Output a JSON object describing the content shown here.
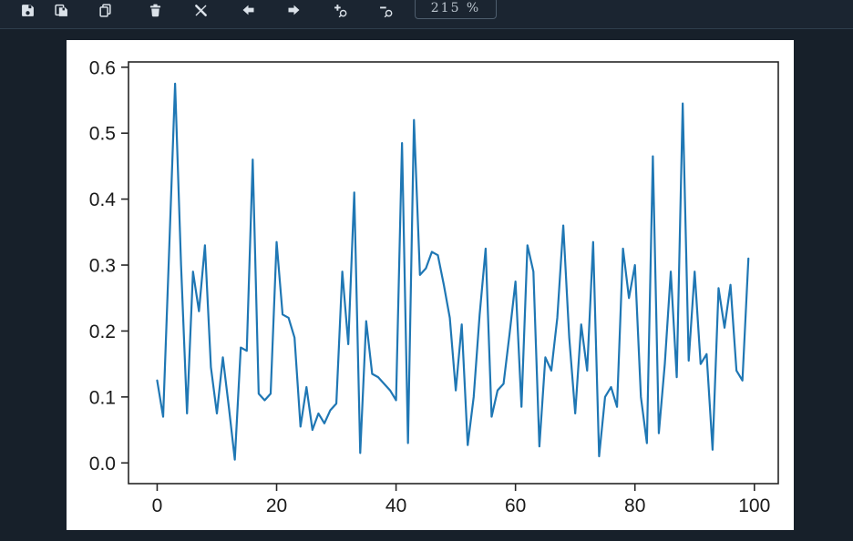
{
  "toolbar": {
    "zoom_level": "215 %",
    "icons": [
      {
        "name": "save"
      },
      {
        "name": "save-all"
      },
      {
        "name": "copy"
      },
      {
        "name": "delete"
      },
      {
        "name": "clear"
      },
      {
        "name": "back"
      },
      {
        "name": "forward"
      },
      {
        "name": "zoom-in"
      },
      {
        "name": "zoom-out"
      }
    ]
  },
  "chart_data": {
    "type": "line",
    "title": "",
    "xlabel": "",
    "ylabel": "",
    "x_ticks": [
      0,
      20,
      40,
      60,
      80,
      100
    ],
    "y_ticks": [
      0.0,
      0.1,
      0.2,
      0.3,
      0.4,
      0.5,
      0.6
    ],
    "xlim": [
      -4.8,
      104.0
    ],
    "ylim": [
      -0.0314,
      0.608
    ],
    "grid": false,
    "legend": null,
    "series_color": "#1f77b4",
    "axis_color": "#262626",
    "tick_label_color": "#1a1a1a",
    "x": [
      0,
      1,
      2,
      3,
      4,
      5,
      6,
      7,
      8,
      9,
      10,
      11,
      12,
      13,
      14,
      15,
      16,
      17,
      18,
      19,
      20,
      21,
      22,
      23,
      24,
      25,
      26,
      27,
      28,
      29,
      30,
      31,
      32,
      33,
      34,
      35,
      36,
      37,
      38,
      39,
      40,
      41,
      42,
      43,
      44,
      45,
      46,
      47,
      48,
      49,
      50,
      51,
      52,
      53,
      54,
      55,
      56,
      57,
      58,
      59,
      60,
      61,
      62,
      63,
      64,
      65,
      66,
      67,
      68,
      69,
      70,
      71,
      72,
      73,
      74,
      75,
      76,
      77,
      78,
      79,
      80,
      81,
      82,
      83,
      84,
      85,
      86,
      87,
      88,
      89,
      90,
      91,
      92,
      93,
      94,
      95,
      96,
      97,
      98,
      99
    ],
    "values": [
      0.125,
      0.07,
      0.32,
      0.575,
      0.3,
      0.075,
      0.29,
      0.23,
      0.33,
      0.145,
      0.075,
      0.16,
      0.085,
      0.005,
      0.175,
      0.17,
      0.46,
      0.105,
      0.095,
      0.105,
      0.335,
      0.225,
      0.22,
      0.19,
      0.055,
      0.115,
      0.05,
      0.075,
      0.06,
      0.08,
      0.09,
      0.29,
      0.18,
      0.41,
      0.015,
      0.215,
      0.135,
      0.13,
      0.12,
      0.11,
      0.095,
      0.485,
      0.03,
      0.52,
      0.285,
      0.295,
      0.32,
      0.315,
      0.27,
      0.22,
      0.11,
      0.21,
      0.027,
      0.1,
      0.225,
      0.325,
      0.07,
      0.11,
      0.12,
      0.195,
      0.275,
      0.085,
      0.33,
      0.29,
      0.025,
      0.16,
      0.14,
      0.22,
      0.36,
      0.19,
      0.075,
      0.21,
      0.14,
      0.335,
      0.01,
      0.1,
      0.115,
      0.085,
      0.325,
      0.25,
      0.3,
      0.1,
      0.03,
      0.465,
      0.045,
      0.15,
      0.29,
      0.13,
      0.545,
      0.155,
      0.29,
      0.15,
      0.165,
      0.02,
      0.265,
      0.205,
      0.27,
      0.14,
      0.125,
      0.31
    ]
  }
}
